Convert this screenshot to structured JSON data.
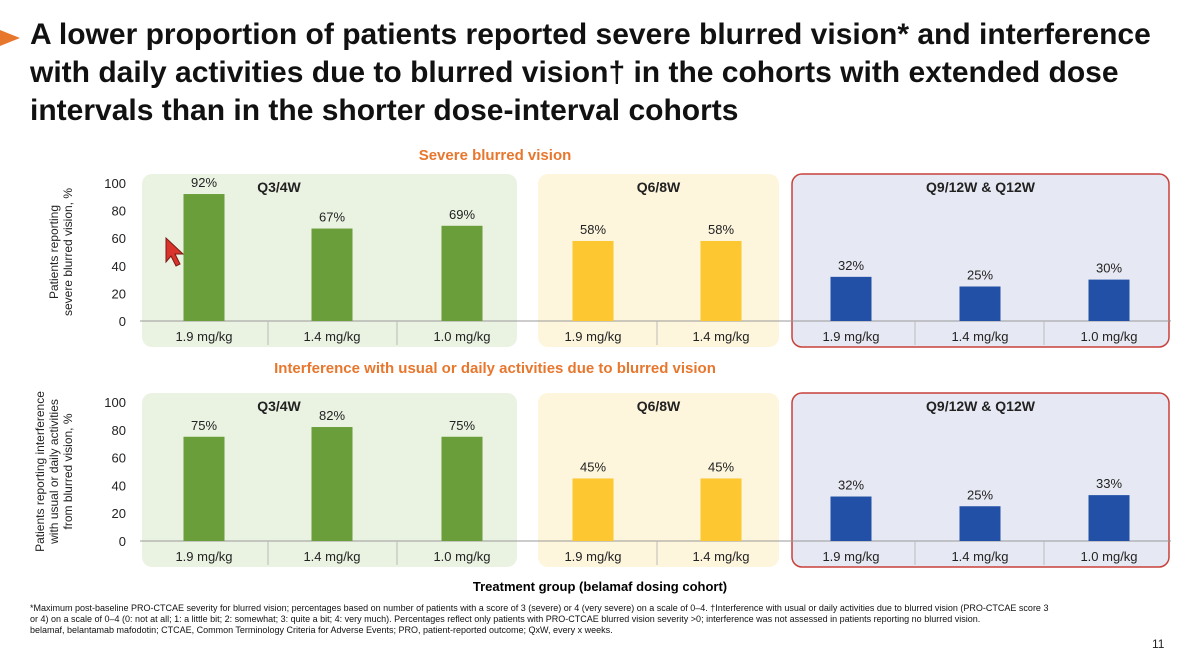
{
  "slide": {
    "title": "A lower proportion of patients reported severe blurred vision* and interference with daily activities due to blurred vision† in the cohorts with extended dose intervals than in the shorter dose-interval cohorts",
    "x_axis_title": "Treatment group (belamaf dosing cohort)",
    "footnote_1": "*Maximum post-baseline PRO-CTCAE severity for blurred vision; percentages based on number of patients with a score of 3 (severe) or 4 (very severe) on a scale of 0–4. †Interference with usual or daily activities due to blurred vision (PRO-CTCAE score 3 or 4) on a scale of 0–4 (0: not at all; 1: a little bit; 2: somewhat; 3: quite a bit; 4: very much). Percentages reflect only patients with PRO-CTCAE blurred vision severity >0; interference was not assessed in patients reporting no blurred vision.",
    "footnote_2": "belamaf, belantamab mafodotin; CTCAE, Common Terminology Criteria for Adverse Events; PRO, patient-reported outcome; QxW, every x weeks.",
    "page_number": "11"
  },
  "colors": {
    "accent_orange": "#e8772e",
    "green": "#6a9e3a",
    "yellow": "#fcc730",
    "blue": "#2150a6",
    "green_panel": "#eaf3e2",
    "yellow_panel": "#fdf6dd",
    "blue_panel": "#e6e9f3",
    "panel_border": "#c8413b"
  },
  "chart_data": [
    {
      "type": "bar",
      "title": "Severe blurred vision",
      "ylabel": [
        "Patients reporting",
        "severe blurred vision, %"
      ],
      "ylim": [
        0,
        100
      ],
      "yticks": [
        "0",
        "20",
        "40",
        "60",
        "80",
        "100"
      ],
      "groups": [
        {
          "name": "Q3/4W",
          "color": "#6a9e3a",
          "categories": [
            "1.9 mg/kg",
            "1.4 mg/kg",
            "1.0 mg/kg"
          ],
          "values": [
            92,
            67,
            69
          ],
          "labels": [
            "92%",
            "67%",
            "69%"
          ]
        },
        {
          "name": "Q6/8W",
          "color": "#fcc730",
          "categories": [
            "1.9 mg/kg",
            "1.4 mg/kg"
          ],
          "values": [
            58,
            58
          ],
          "labels": [
            "58%",
            "58%"
          ]
        },
        {
          "name": "Q9/12W & Q12W",
          "color": "#2150a6",
          "categories": [
            "1.9 mg/kg",
            "1.4 mg/kg",
            "1.0 mg/kg"
          ],
          "values": [
            32,
            25,
            30
          ],
          "labels": [
            "32%",
            "25%",
            "30%"
          ]
        }
      ]
    },
    {
      "type": "bar",
      "title": "Interference with usual or daily activities due to blurred vision",
      "ylabel": [
        "Patients reporting interference",
        "with usual or daily activities",
        "from blurred vision, %"
      ],
      "ylim": [
        0,
        100
      ],
      "yticks": [
        "0",
        "20",
        "40",
        "60",
        "80",
        "100"
      ],
      "groups": [
        {
          "name": "Q3/4W",
          "color": "#6a9e3a",
          "categories": [
            "1.9 mg/kg",
            "1.4 mg/kg",
            "1.0 mg/kg"
          ],
          "values": [
            75,
            82,
            75
          ],
          "labels": [
            "75%",
            "82%",
            "75%"
          ]
        },
        {
          "name": "Q6/8W",
          "color": "#fcc730",
          "categories": [
            "1.9 mg/kg",
            "1.4 mg/kg"
          ],
          "values": [
            45,
            45
          ],
          "labels": [
            "45%",
            "45%"
          ]
        },
        {
          "name": "Q9/12W & Q12W",
          "color": "#2150a6",
          "categories": [
            "1.9 mg/kg",
            "1.4 mg/kg",
            "1.0 mg/kg"
          ],
          "values": [
            32,
            25,
            33
          ],
          "labels": [
            "32%",
            "25%",
            "33%"
          ]
        }
      ]
    }
  ]
}
